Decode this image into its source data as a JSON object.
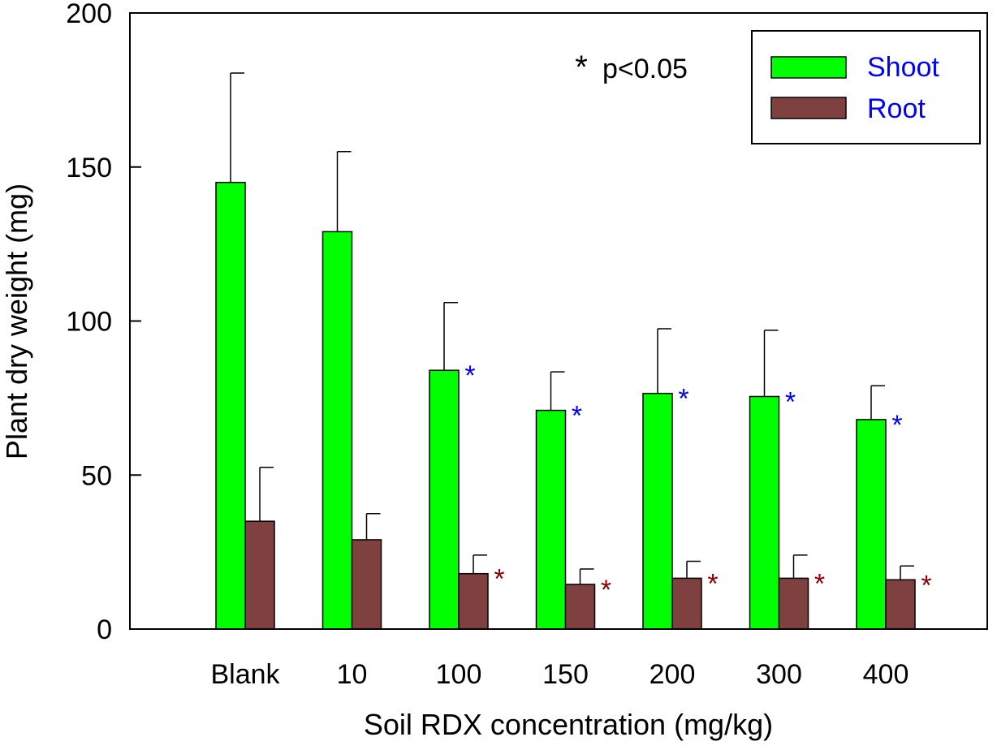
{
  "chart_data": {
    "type": "bar",
    "title": "",
    "xlabel": "Soil RDX concentration (mg/kg)",
    "ylabel": "Plant dry weight (mg)",
    "ylim": [
      0,
      200
    ],
    "yticks": [
      0,
      50,
      100,
      150,
      200
    ],
    "categories": [
      "Blank",
      "10",
      "100",
      "150",
      "200",
      "300",
      "400"
    ],
    "series": [
      {
        "name": "Shoot",
        "color": "#00ff00",
        "values": [
          145,
          129,
          84,
          71,
          76.5,
          75.5,
          68
        ],
        "errors": [
          35.5,
          26,
          22,
          12.5,
          21,
          21.5,
          11
        ],
        "significant": [
          false,
          false,
          true,
          true,
          true,
          true,
          true
        ],
        "marker_color": "#0000ff"
      },
      {
        "name": "Root",
        "color": "#7f4040",
        "values": [
          35,
          29,
          18,
          14.5,
          16.5,
          16.5,
          16
        ],
        "errors": [
          17.5,
          8.5,
          6,
          5,
          5.5,
          7.5,
          4.5
        ],
        "significant": [
          false,
          false,
          true,
          true,
          true,
          true,
          true
        ],
        "marker_color": "#8b0000"
      }
    ],
    "significance_marker": "*",
    "annotation": "p<0.05",
    "legend": {
      "position": "top-right",
      "label_color": "#0000ff"
    },
    "grid": false
  }
}
